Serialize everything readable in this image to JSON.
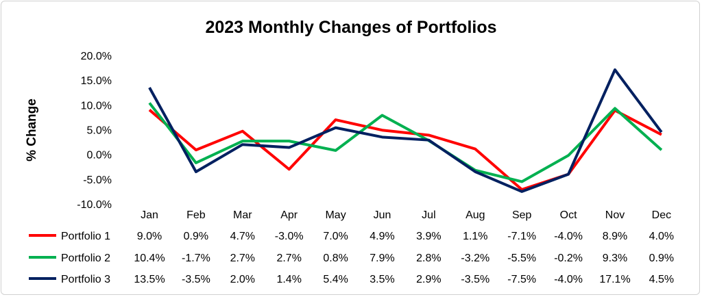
{
  "chart_data": {
    "type": "line",
    "title": "2023 Monthly Changes of Portfolios",
    "xlabel": "",
    "ylabel": "% Change",
    "ylim": [
      -10,
      20
    ],
    "yticks": [
      20,
      15,
      10,
      5,
      0,
      -5,
      -10
    ],
    "ytick_labels": [
      "20.0%",
      "15.0%",
      "10.0%",
      "5.0%",
      "0.0%",
      "-5.0%",
      "-10.0%"
    ],
    "grid": false,
    "legend": "data-table-below",
    "categories": [
      "Jan",
      "Feb",
      "Mar",
      "Apr",
      "May",
      "Jun",
      "Jul",
      "Aug",
      "Sep",
      "Oct",
      "Nov",
      "Dec"
    ],
    "series": [
      {
        "name": "Portfolio 1",
        "color": "#FF0000",
        "values": [
          9.0,
          0.9,
          4.7,
          -3.0,
          7.0,
          4.9,
          3.9,
          1.1,
          -7.1,
          -4.0,
          8.9,
          4.0
        ],
        "labels": [
          "9.0%",
          "0.9%",
          "4.7%",
          "-3.0%",
          "7.0%",
          "4.9%",
          "3.9%",
          "1.1%",
          "-7.1%",
          "-4.0%",
          "8.9%",
          "4.0%"
        ]
      },
      {
        "name": "Portfolio 2",
        "color": "#00B050",
        "values": [
          10.4,
          -1.7,
          2.7,
          2.7,
          0.8,
          7.9,
          2.8,
          -3.2,
          -5.5,
          -0.2,
          9.3,
          0.9
        ],
        "labels": [
          "10.4%",
          "-1.7%",
          "2.7%",
          "2.7%",
          "0.8%",
          "7.9%",
          "2.8%",
          "-3.2%",
          "-5.5%",
          "-0.2%",
          "9.3%",
          "0.9%"
        ]
      },
      {
        "name": "Portfolio 3",
        "color": "#002060",
        "values": [
          13.5,
          -3.5,
          2.0,
          1.4,
          5.4,
          3.5,
          2.9,
          -3.5,
          -7.5,
          -4.0,
          17.1,
          4.5
        ],
        "labels": [
          "13.5%",
          "-3.5%",
          "2.0%",
          "1.4%",
          "5.4%",
          "3.5%",
          "2.9%",
          "-3.5%",
          "-7.5%",
          "-4.0%",
          "17.1%",
          "4.5%"
        ]
      }
    ]
  }
}
